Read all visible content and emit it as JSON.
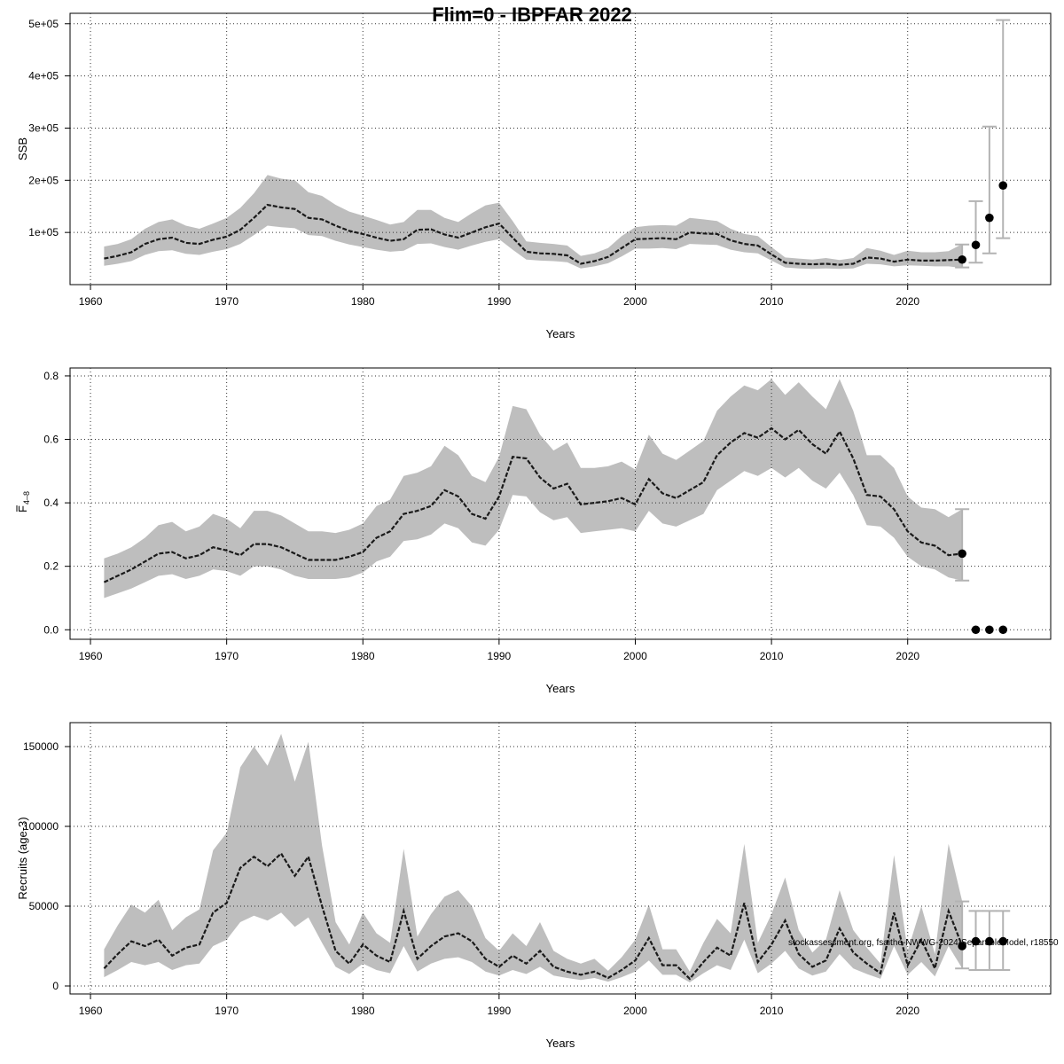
{
  "chart_data": [
    {
      "id": "ssb",
      "type": "area",
      "figure_title": "Flim=0 - IBPFAR 2022",
      "xlabel": "Years",
      "ylabel": "SSB",
      "xlim": [
        1958.5,
        2030.5
      ],
      "ylim": [
        0,
        520000
      ],
      "xticks": [
        1960,
        1970,
        1980,
        1990,
        2000,
        2010,
        2020
      ],
      "xtick_labels": [
        "1960",
        "1970",
        "1980",
        "1990",
        "2000",
        "2010",
        "2020"
      ],
      "yticks": [
        100000,
        200000,
        300000,
        400000,
        500000
      ],
      "ytick_labels": [
        "1e+05",
        "2e+05",
        "3e+05",
        "4e+05",
        "5e+05"
      ],
      "grid": true,
      "years": [
        1961,
        1962,
        1963,
        1964,
        1965,
        1966,
        1967,
        1968,
        1969,
        1970,
        1971,
        1972,
        1973,
        1974,
        1975,
        1976,
        1977,
        1978,
        1979,
        1980,
        1981,
        1982,
        1983,
        1984,
        1985,
        1986,
        1987,
        1988,
        1989,
        1990,
        1991,
        1992,
        1993,
        1994,
        1995,
        1996,
        1997,
        1998,
        1999,
        2000,
        2001,
        2002,
        2003,
        2004,
        2005,
        2006,
        2007,
        2008,
        2009,
        2010,
        2011,
        2012,
        2013,
        2014,
        2015,
        2016,
        2017,
        2018,
        2019,
        2020,
        2021,
        2022,
        2023,
        2024
      ],
      "series": [
        {
          "name": "",
          "values": [
            50000,
            55000,
            62000,
            78000,
            87000,
            90000,
            80000,
            78000,
            86000,
            92000,
            105000,
            128000,
            153000,
            148000,
            145000,
            128000,
            125000,
            113000,
            103000,
            97000,
            90000,
            84000,
            87000,
            105000,
            106000,
            96000,
            90000,
            100000,
            110000,
            117000,
            90000,
            63000,
            60000,
            59000,
            56000,
            40000,
            45000,
            53000,
            70000,
            87000,
            88000,
            89000,
            87000,
            100000,
            98000,
            97000,
            85000,
            78000,
            75000,
            58000,
            42000,
            40000,
            39000,
            40000,
            38000,
            40000,
            52000,
            50000,
            44000,
            48000,
            46000,
            46000,
            47000,
            48000
          ]
        },
        {
          "name": "",
          "values": [
            73000,
            78000,
            87000,
            107000,
            120000,
            125000,
            113000,
            107000,
            117000,
            128000,
            147000,
            175000,
            210000,
            203000,
            200000,
            177000,
            170000,
            153000,
            140000,
            132000,
            124000,
            115000,
            120000,
            143000,
            143000,
            128000,
            120000,
            137000,
            152000,
            157000,
            122000,
            83000,
            80000,
            78000,
            75000,
            55000,
            60000,
            70000,
            93000,
            110000,
            113000,
            114000,
            113000,
            128000,
            125000,
            122000,
            107000,
            97000,
            93000,
            72000,
            52000,
            50000,
            48000,
            51000,
            47000,
            51000,
            70000,
            65000,
            57000,
            65000,
            62000,
            62000,
            64000,
            78000
          ]
        },
        {
          "name": "",
          "values": [
            36000,
            40000,
            45000,
            57000,
            64000,
            66000,
            59000,
            57000,
            63000,
            68000,
            78000,
            95000,
            113000,
            110000,
            108000,
            95000,
            93000,
            84000,
            77000,
            72000,
            67000,
            63000,
            65000,
            78000,
            79000,
            72000,
            67000,
            75000,
            82000,
            87000,
            67000,
            48000,
            46000,
            45000,
            43000,
            31000,
            35000,
            41000,
            54000,
            69000,
            69000,
            70000,
            68000,
            78000,
            77000,
            76000,
            67000,
            62000,
            60000,
            46000,
            33000,
            31000,
            30000,
            31000,
            30000,
            31000,
            40000,
            39000,
            35000,
            37000,
            36000,
            35000,
            35000,
            32000
          ]
        }
      ],
      "projection": {
        "years": [
          2024,
          2025,
          2026,
          2027
        ],
        "values": [
          48000,
          76000,
          128000,
          190000
        ],
        "lower": [
          33000,
          42000,
          60000,
          89000
        ],
        "upper": [
          77000,
          160000,
          303000,
          507000
        ]
      }
    },
    {
      "id": "fbar",
      "type": "area",
      "xlabel": "Years",
      "ylabel": "F",
      "ylabel_sub": "4–8",
      "xlim": [
        1958.5,
        2030.5
      ],
      "ylim": [
        -0.03,
        0.825
      ],
      "xticks": [
        1960,
        1970,
        1980,
        1990,
        2000,
        2010,
        2020
      ],
      "xtick_labels": [
        "1960",
        "1970",
        "1980",
        "1990",
        "2000",
        "2010",
        "2020"
      ],
      "yticks": [
        0,
        0.2,
        0.4,
        0.6,
        0.8
      ],
      "ytick_labels": [
        "0.0",
        "0.2",
        "0.4",
        "0.6",
        "0.8"
      ],
      "grid": true,
      "years": [
        1961,
        1962,
        1963,
        1964,
        1965,
        1966,
        1967,
        1968,
        1969,
        1970,
        1971,
        1972,
        1973,
        1974,
        1975,
        1976,
        1977,
        1978,
        1979,
        1980,
        1981,
        1982,
        1983,
        1984,
        1985,
        1986,
        1987,
        1988,
        1989,
        1990,
        1991,
        1992,
        1993,
        1994,
        1995,
        1996,
        1997,
        1998,
        1999,
        2000,
        2001,
        2002,
        2003,
        2004,
        2005,
        2006,
        2007,
        2008,
        2009,
        2010,
        2011,
        2012,
        2013,
        2014,
        2015,
        2016,
        2017,
        2018,
        2019,
        2020,
        2021,
        2022,
        2023,
        2024
      ],
      "series": [
        {
          "name": "",
          "values": [
            0.15,
            0.17,
            0.19,
            0.215,
            0.24,
            0.245,
            0.225,
            0.235,
            0.26,
            0.25,
            0.235,
            0.27,
            0.27,
            0.26,
            0.24,
            0.22,
            0.22,
            0.22,
            0.23,
            0.245,
            0.29,
            0.31,
            0.365,
            0.375,
            0.39,
            0.44,
            0.42,
            0.365,
            0.35,
            0.42,
            0.545,
            0.54,
            0.48,
            0.445,
            0.46,
            0.395,
            0.4,
            0.405,
            0.415,
            0.395,
            0.475,
            0.43,
            0.415,
            0.44,
            0.465,
            0.55,
            0.59,
            0.62,
            0.605,
            0.635,
            0.6,
            0.63,
            0.585,
            0.555,
            0.625,
            0.54,
            0.425,
            0.42,
            0.38,
            0.31,
            0.275,
            0.265,
            0.235,
            0.24
          ]
        },
        {
          "name": "",
          "values": [
            0.225,
            0.24,
            0.26,
            0.29,
            0.33,
            0.34,
            0.31,
            0.325,
            0.365,
            0.35,
            0.32,
            0.375,
            0.375,
            0.36,
            0.335,
            0.31,
            0.31,
            0.305,
            0.315,
            0.335,
            0.39,
            0.41,
            0.485,
            0.495,
            0.515,
            0.58,
            0.55,
            0.485,
            0.465,
            0.545,
            0.705,
            0.695,
            0.615,
            0.565,
            0.59,
            0.51,
            0.51,
            0.515,
            0.53,
            0.505,
            0.615,
            0.555,
            0.535,
            0.565,
            0.595,
            0.69,
            0.735,
            0.77,
            0.755,
            0.79,
            0.74,
            0.78,
            0.735,
            0.695,
            0.79,
            0.69,
            0.55,
            0.55,
            0.51,
            0.42,
            0.385,
            0.38,
            0.355,
            0.38
          ]
        },
        {
          "name": "",
          "values": [
            0.1,
            0.115,
            0.13,
            0.15,
            0.17,
            0.175,
            0.16,
            0.17,
            0.19,
            0.185,
            0.17,
            0.2,
            0.2,
            0.19,
            0.17,
            0.16,
            0.16,
            0.16,
            0.165,
            0.18,
            0.215,
            0.23,
            0.28,
            0.285,
            0.3,
            0.335,
            0.32,
            0.275,
            0.265,
            0.315,
            0.425,
            0.42,
            0.37,
            0.345,
            0.355,
            0.305,
            0.31,
            0.315,
            0.32,
            0.31,
            0.375,
            0.335,
            0.325,
            0.345,
            0.365,
            0.44,
            0.47,
            0.5,
            0.485,
            0.51,
            0.48,
            0.51,
            0.47,
            0.445,
            0.495,
            0.425,
            0.33,
            0.325,
            0.29,
            0.23,
            0.2,
            0.19,
            0.165,
            0.155
          ]
        }
      ],
      "projection": {
        "years": [
          2024,
          2025,
          2026,
          2027
        ],
        "values": [
          0.24,
          0,
          0,
          0
        ],
        "lower": [
          0.155,
          0,
          0,
          0
        ],
        "upper": [
          0.38,
          0,
          0,
          0
        ]
      }
    },
    {
      "id": "rec",
      "type": "area",
      "xlabel": "Years",
      "ylabel": "Recruits (age-3)",
      "xlim": [
        1958.5,
        2030.5
      ],
      "ylim": [
        -5000,
        165000
      ],
      "xticks": [
        1960,
        1970,
        1980,
        1990,
        2000,
        2010,
        2020
      ],
      "xtick_labels": [
        "1960",
        "1970",
        "1980",
        "1990",
        "2000",
        "2010",
        "2020"
      ],
      "yticks": [
        0,
        50000,
        100000,
        150000
      ],
      "ytick_labels": [
        "0",
        "50000",
        "100000",
        "150000"
      ],
      "grid": true,
      "annotation": "stockassessment.org, fsaithe-NWWG-2024-SeparableModel, r18550",
      "years": [
        1961,
        1962,
        1963,
        1964,
        1965,
        1966,
        1967,
        1968,
        1969,
        1970,
        1971,
        1972,
        1973,
        1974,
        1975,
        1976,
        1977,
        1978,
        1979,
        1980,
        1981,
        1982,
        1983,
        1984,
        1985,
        1986,
        1987,
        1988,
        1989,
        1990,
        1991,
        1992,
        1993,
        1994,
        1995,
        1996,
        1997,
        1998,
        1999,
        2000,
        2001,
        2002,
        2003,
        2004,
        2005,
        2006,
        2007,
        2008,
        2009,
        2010,
        2011,
        2012,
        2013,
        2014,
        2015,
        2016,
        2017,
        2018,
        2019,
        2020,
        2021,
        2022,
        2023,
        2024
      ],
      "series": [
        {
          "name": "",
          "values": [
            11000,
            20000,
            28000,
            25000,
            29000,
            19000,
            24000,
            26000,
            46000,
            52000,
            74000,
            81000,
            75000,
            83000,
            69000,
            81000,
            50000,
            22000,
            14000,
            26000,
            19000,
            15000,
            47000,
            17000,
            25000,
            31000,
            33000,
            28000,
            17000,
            12000,
            19000,
            14000,
            22000,
            12000,
            9000,
            7000,
            9000,
            5000,
            10000,
            16000,
            30000,
            13000,
            13000,
            4500,
            15000,
            24000,
            19000,
            52000,
            15000,
            26000,
            41000,
            20000,
            12000,
            16000,
            36000,
            21000,
            14000,
            8000,
            46000,
            13000,
            29000,
            11000,
            47000,
            25000
          ]
        },
        {
          "name": "",
          "values": [
            23000,
            38000,
            51000,
            46000,
            54000,
            35000,
            43000,
            48000,
            85000,
            96000,
            137000,
            150000,
            138000,
            158000,
            128000,
            153000,
            88000,
            40000,
            26000,
            46000,
            33000,
            27000,
            86000,
            31000,
            45000,
            56000,
            60000,
            50000,
            30000,
            22000,
            33000,
            25000,
            40000,
            22000,
            17000,
            14000,
            17000,
            9500,
            18000,
            29000,
            51000,
            23000,
            23000,
            9000,
            27000,
            42000,
            33000,
            89000,
            27000,
            45000,
            68000,
            35000,
            21000,
            29000,
            60000,
            35000,
            24000,
            14000,
            82000,
            22000,
            50000,
            20000,
            89000,
            53000
          ]
        },
        {
          "name": "",
          "values": [
            5500,
            10000,
            15000,
            13000,
            15000,
            10000,
            13000,
            14000,
            25000,
            29000,
            40000,
            44000,
            41000,
            46000,
            37000,
            43000,
            27000,
            12000,
            7500,
            14000,
            10000,
            8000,
            25000,
            9000,
            14000,
            17000,
            18000,
            15000,
            9000,
            6500,
            10000,
            7500,
            12000,
            6500,
            5000,
            3800,
            5000,
            2700,
            5500,
            9000,
            16000,
            7000,
            7000,
            2300,
            8000,
            13000,
            10000,
            29000,
            8000,
            14000,
            22000,
            11000,
            6500,
            9000,
            20000,
            11000,
            7500,
            4500,
            25000,
            7000,
            15000,
            6000,
            25000,
            11000
          ]
        }
      ],
      "projection": {
        "years": [
          2024,
          2025,
          2026,
          2027
        ],
        "values": [
          25000,
          28000,
          28000,
          28000
        ],
        "lower": [
          11000,
          10000,
          10000,
          10000
        ],
        "upper": [
          53000,
          47000,
          47000,
          47000
        ]
      }
    }
  ]
}
